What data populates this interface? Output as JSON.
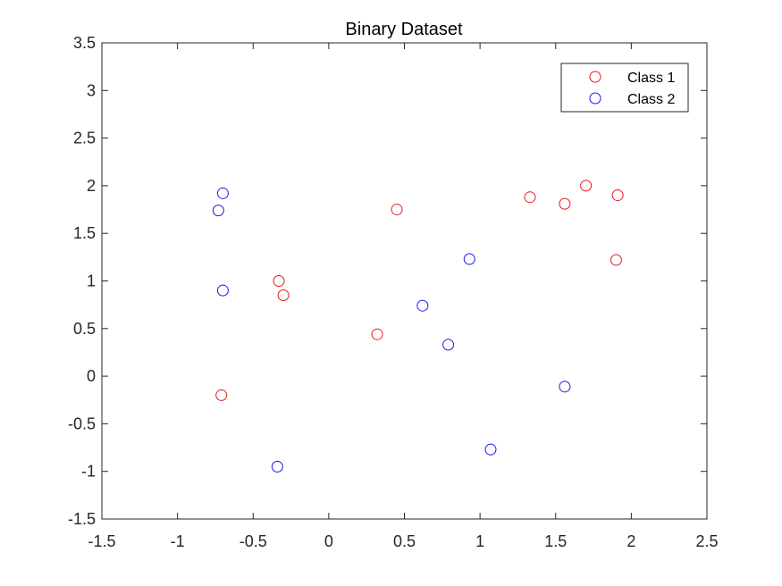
{
  "chart_data": {
    "type": "scatter",
    "title": "Binary Dataset",
    "xlabel": "",
    "ylabel": "",
    "xlim": [
      -1.5,
      2.5
    ],
    "ylim": [
      -1.5,
      3.5
    ],
    "xticks": [
      -1.5,
      -1,
      -0.5,
      0,
      0.5,
      1,
      1.5,
      2,
      2.5
    ],
    "yticks": [
      -1.5,
      -1,
      -0.5,
      0,
      0.5,
      1,
      1.5,
      2,
      2.5,
      3,
      3.5
    ],
    "xtick_labels": [
      "-1.5",
      "-1",
      "-0.5",
      "0",
      "0.5",
      "1",
      "1.5",
      "2",
      "2.5"
    ],
    "ytick_labels": [
      "-1.5",
      "-1",
      "-0.5",
      "0",
      "0.5",
      "1",
      "1.5",
      "2",
      "2.5",
      "3",
      "3.5"
    ],
    "grid": false,
    "legend_position": "top-right",
    "marker": "open-circle",
    "series": [
      {
        "name": "Class 1",
        "color": "#e8191b",
        "points": [
          [
            -0.71,
            -0.2
          ],
          [
            -0.33,
            1.0
          ],
          [
            -0.3,
            0.85
          ],
          [
            0.32,
            0.44
          ],
          [
            0.45,
            1.75
          ],
          [
            1.33,
            1.88
          ],
          [
            1.56,
            1.81
          ],
          [
            1.7,
            2.0
          ],
          [
            1.91,
            1.9
          ],
          [
            1.9,
            1.22
          ]
        ]
      },
      {
        "name": "Class 2",
        "color": "#1a1aeb",
        "points": [
          [
            -0.7,
            1.92
          ],
          [
            -0.73,
            1.74
          ],
          [
            -0.7,
            0.9
          ],
          [
            -0.34,
            -0.95
          ],
          [
            0.62,
            0.74
          ],
          [
            0.79,
            0.33
          ],
          [
            0.93,
            1.23
          ],
          [
            1.07,
            -0.77
          ],
          [
            1.56,
            -0.11
          ]
        ]
      }
    ]
  }
}
